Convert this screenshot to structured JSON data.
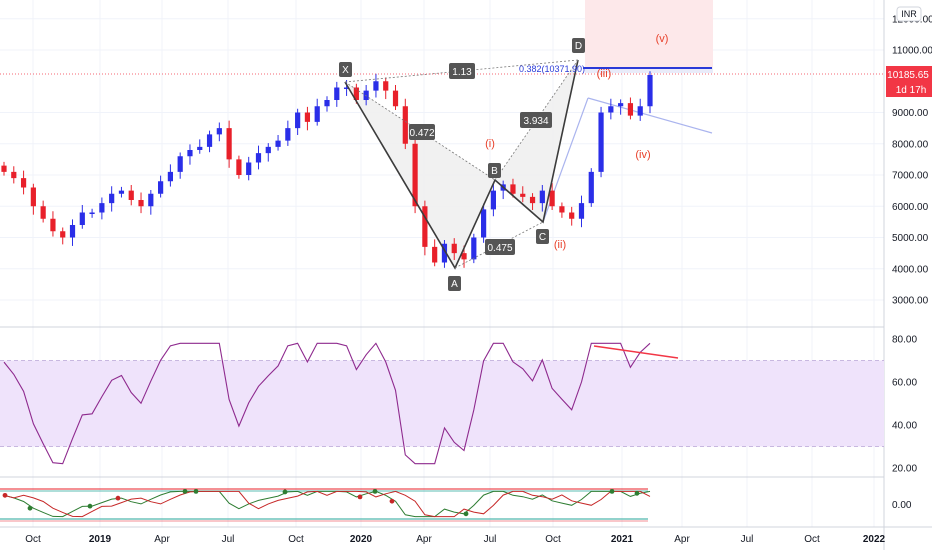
{
  "currency": "INR",
  "price_axis": {
    "ticks": [
      {
        "value": 12000,
        "label": "12000.00"
      },
      {
        "value": 11000,
        "label": "11000.00"
      },
      {
        "value": 9000,
        "label": "9000.00"
      },
      {
        "value": 8000,
        "label": "8000.00"
      },
      {
        "value": 7000,
        "label": "7000.00"
      },
      {
        "value": 6000,
        "label": "6000.00"
      },
      {
        "value": 5000,
        "label": "5000.00"
      },
      {
        "value": 4000,
        "label": "4000.00"
      },
      {
        "value": 3000,
        "label": "3000.00"
      }
    ]
  },
  "last_price": {
    "label": "10185.65",
    "value": 10185.65,
    "countdown": "1d 17h"
  },
  "rsi_axis": {
    "ticks": [
      "80.00",
      "60.00",
      "40.00",
      "20.00"
    ],
    "values": [
      80,
      60,
      40,
      20
    ],
    "band": [
      70,
      30
    ]
  },
  "osc_axis": {
    "ticks": [
      "0.00"
    ]
  },
  "time_axis": {
    "labels": [
      {
        "text": "Oct",
        "bold": false
      },
      {
        "text": "2019",
        "bold": true
      },
      {
        "text": "Apr",
        "bold": false
      },
      {
        "text": "Jul",
        "bold": false
      },
      {
        "text": "Oct",
        "bold": false
      },
      {
        "text": "2020",
        "bold": true
      },
      {
        "text": "Apr",
        "bold": false
      },
      {
        "text": "Jul",
        "bold": false
      },
      {
        "text": "Oct",
        "bold": false
      },
      {
        "text": "2021",
        "bold": true
      },
      {
        "text": "Apr",
        "bold": false
      },
      {
        "text": "Jul",
        "bold": false
      },
      {
        "text": "Oct",
        "bold": false
      },
      {
        "text": "2022",
        "bold": true
      }
    ]
  },
  "harmonic": {
    "points": [
      "X",
      "A",
      "B",
      "C",
      "D"
    ],
    "ratios": {
      "xab": "0.472",
      "abc": "0.475",
      "bcd": "3.934",
      "xad": "1.13"
    },
    "fib_label": "0.382(10371.90)"
  },
  "waves": [
    "(i)",
    "(ii)",
    "(iii)",
    "(iv)",
    "(v)"
  ],
  "colors": {
    "up": "#2a2ee8",
    "down": "#e8202a",
    "doji_up": "#b8c83a",
    "doji_cyan": "#7ec8d4",
    "rsi_line": "#8e2a8e",
    "rsi_band": "#efe3fb",
    "wave_text": "#e8402a",
    "harmonic_line": "#3c3c3c",
    "blue_line": "#2a3ad8",
    "light_line": "#aab4ee"
  },
  "chart_data": {
    "type": "candlestick",
    "title": "",
    "price_range": [
      2500,
      12500
    ],
    "weekly_closes_approx": [
      7100,
      6900,
      6600,
      6000,
      5600,
      5200,
      5000,
      5400,
      5800,
      5800,
      6100,
      6400,
      6500,
      6200,
      6000,
      6400,
      6800,
      7100,
      7600,
      7800,
      7900,
      8300,
      8500,
      7500,
      7000,
      7400,
      7700,
      7900,
      8100,
      8500,
      9000,
      8700,
      9200,
      9400,
      9800,
      9800,
      9400,
      9700,
      10000,
      9700,
      9200,
      8000,
      6000,
      4700,
      4200,
      4800,
      4500,
      4300,
      5000,
      5900,
      6500,
      6700,
      6400,
      6300,
      6100,
      6500,
      6000,
      5800,
      5600,
      6100,
      7100,
      9000,
      9200,
      9300,
      8900,
      9200,
      10200
    ],
    "pattern_points": [
      {
        "name": "X",
        "price": 10000,
        "date": "2020-01"
      },
      {
        "name": "A",
        "price": 4000,
        "date": "2020-05"
      },
      {
        "name": "B",
        "price": 6900,
        "date": "2020-07"
      },
      {
        "name": "C",
        "price": 5550,
        "date": "2020-09"
      },
      {
        "name": "D",
        "price": 10450,
        "date": "2020-11"
      }
    ],
    "rsi": {
      "overbought": 70,
      "oversold": 30,
      "latest_approx": 71,
      "ylim": [
        15,
        85
      ]
    }
  }
}
